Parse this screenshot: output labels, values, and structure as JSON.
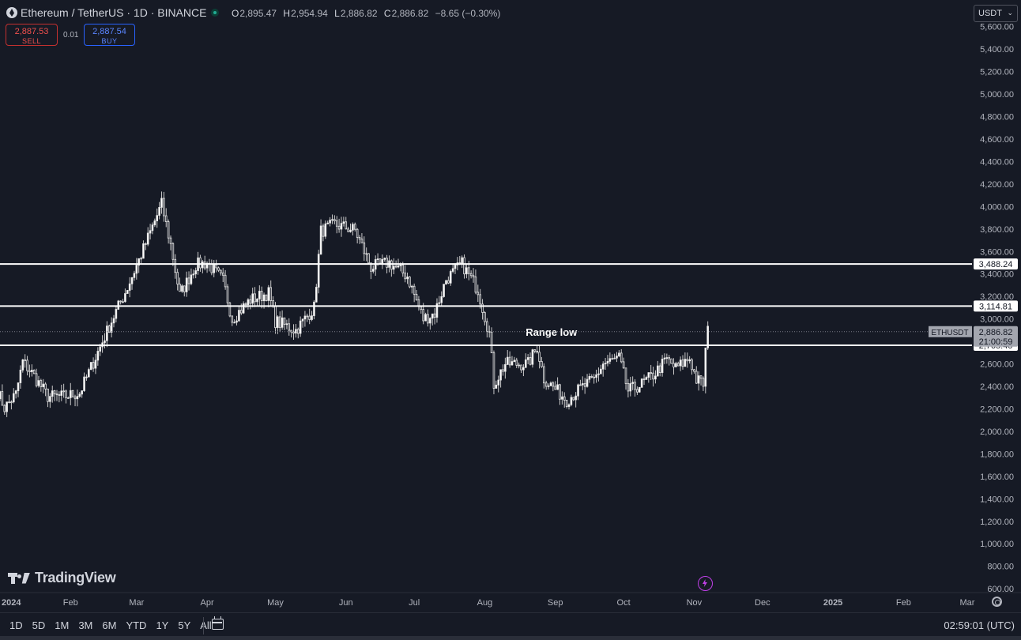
{
  "header": {
    "symbol_title": "Ethereum / TetherUS · 1D · BINANCE",
    "ohlc": [
      {
        "label": "O",
        "value": "2,895.47"
      },
      {
        "label": "H",
        "value": "2,954.94"
      },
      {
        "label": "L",
        "value": "2,886.82"
      },
      {
        "label": "C",
        "value": "2,886.82"
      }
    ],
    "change": "−8.65 (−0.30%)",
    "currency": "USDT"
  },
  "trade": {
    "sell_price": "2,887.53",
    "sell_label": "SELL",
    "spread": "0.01",
    "buy_price": "2,887.54",
    "buy_label": "BUY"
  },
  "watermark": "TradingView",
  "bottom_bar": {
    "ranges": [
      "1D",
      "5D",
      "1M",
      "3M",
      "6M",
      "YTD",
      "1Y",
      "5Y",
      "All"
    ],
    "clock": "02:59:01 (UTC)"
  },
  "icons": {
    "symbol": "ethereum-logo-icon",
    "status": "market-open-dot-icon",
    "flash": "lightning-icon",
    "settings": "gear-icon",
    "calendar": "calendar-icon"
  },
  "colors": {
    "background": "#161a25",
    "candle": "#e6e6e6",
    "level_line": "#ffffff",
    "sell": "#f0504d",
    "buy": "#5a85ff"
  },
  "chart_data": {
    "type": "candlestick",
    "symbol": "ETHUSDT",
    "y_ticks": [
      "600.00",
      "800.00",
      "1,000.00",
      "1,200.00",
      "1,400.00",
      "1,600.00",
      "1,800.00",
      "2,000.00",
      "2,200.00",
      "2,400.00",
      "2,600.00",
      "2,800.00",
      "3,000.00",
      "3,200.00",
      "3,400.00",
      "3,600.00",
      "3,800.00",
      "4,000.00",
      "4,200.00",
      "4,400.00",
      "4,600.00",
      "4,800.00",
      "5,000.00",
      "5,200.00",
      "5,400.00",
      "5,600.00"
    ],
    "y_range": [
      580,
      5640
    ],
    "x_ticks": [
      "2024",
      "Feb",
      "Mar",
      "Apr",
      "May",
      "Jun",
      "Jul",
      "Aug",
      "Sep",
      "Oct",
      "Nov",
      "Dec",
      "2025",
      "Feb",
      "Mar"
    ],
    "x_range": [
      "2024-01-01",
      "2025-03-01"
    ],
    "levels": [
      {
        "value": 3488.24,
        "label": "3,488.24"
      },
      {
        "value": 3114.81,
        "label": "3,114.81"
      },
      {
        "value": 2765.4,
        "label": "2,765.40"
      }
    ],
    "annotation": "Range low",
    "last_price": {
      "label": "ETHUSDT",
      "value": 2886.82,
      "price_label": "2,886.82",
      "countdown": "21:00:59"
    },
    "close_path": [
      [
        "2023-12-31",
        2350
      ],
      [
        "2024-01-03",
        2210
      ],
      [
        "2024-01-08",
        2330
      ],
      [
        "2024-01-11",
        2620
      ],
      [
        "2024-01-15",
        2520
      ],
      [
        "2024-01-22",
        2310
      ],
      [
        "2024-01-29",
        2310
      ],
      [
        "2024-02-05",
        2340
      ],
      [
        "2024-02-12",
        2660
      ],
      [
        "2024-02-19",
        2980
      ],
      [
        "2024-02-26",
        3280
      ],
      [
        "2024-03-04",
        3620
      ],
      [
        "2024-03-12",
        4020
      ],
      [
        "2024-03-16",
        3660
      ],
      [
        "2024-03-20",
        3210
      ],
      [
        "2024-03-27",
        3480
      ],
      [
        "2024-04-01",
        3500
      ],
      [
        "2024-04-08",
        3340
      ],
      [
        "2024-04-12",
        3000
      ],
      [
        "2024-04-20",
        3170
      ],
      [
        "2024-04-28",
        3230
      ],
      [
        "2024-05-01",
        2980
      ],
      [
        "2024-05-10",
        2900
      ],
      [
        "2024-05-18",
        3100
      ],
      [
        "2024-05-21",
        3780
      ],
      [
        "2024-05-27",
        3840
      ],
      [
        "2024-06-05",
        3790
      ],
      [
        "2024-06-12",
        3460
      ],
      [
        "2024-06-20",
        3500
      ],
      [
        "2024-06-28",
        3380
      ],
      [
        "2024-07-05",
        3000
      ],
      [
        "2024-07-10",
        3050
      ],
      [
        "2024-07-15",
        3350
      ],
      [
        "2024-07-22",
        3490
      ],
      [
        "2024-07-29",
        3260
      ],
      [
        "2024-08-03",
        2870
      ],
      [
        "2024-08-05",
        2420
      ],
      [
        "2024-08-10",
        2600
      ],
      [
        "2024-08-20",
        2600
      ],
      [
        "2024-08-24",
        2750
      ],
      [
        "2024-08-27",
        2470
      ],
      [
        "2024-09-06",
        2280
      ],
      [
        "2024-09-12",
        2380
      ],
      [
        "2024-09-18",
        2460
      ],
      [
        "2024-09-22",
        2600
      ],
      [
        "2024-09-29",
        2650
      ],
      [
        "2024-10-03",
        2360
      ],
      [
        "2024-10-09",
        2420
      ],
      [
        "2024-10-14",
        2500
      ],
      [
        "2024-10-20",
        2640
      ],
      [
        "2024-10-24",
        2560
      ],
      [
        "2024-10-30",
        2650
      ],
      [
        "2024-11-02",
        2460
      ],
      [
        "2024-11-05",
        2420
      ],
      [
        "2024-11-06",
        2720
      ],
      [
        "2024-11-07",
        2890
      ]
    ]
  }
}
